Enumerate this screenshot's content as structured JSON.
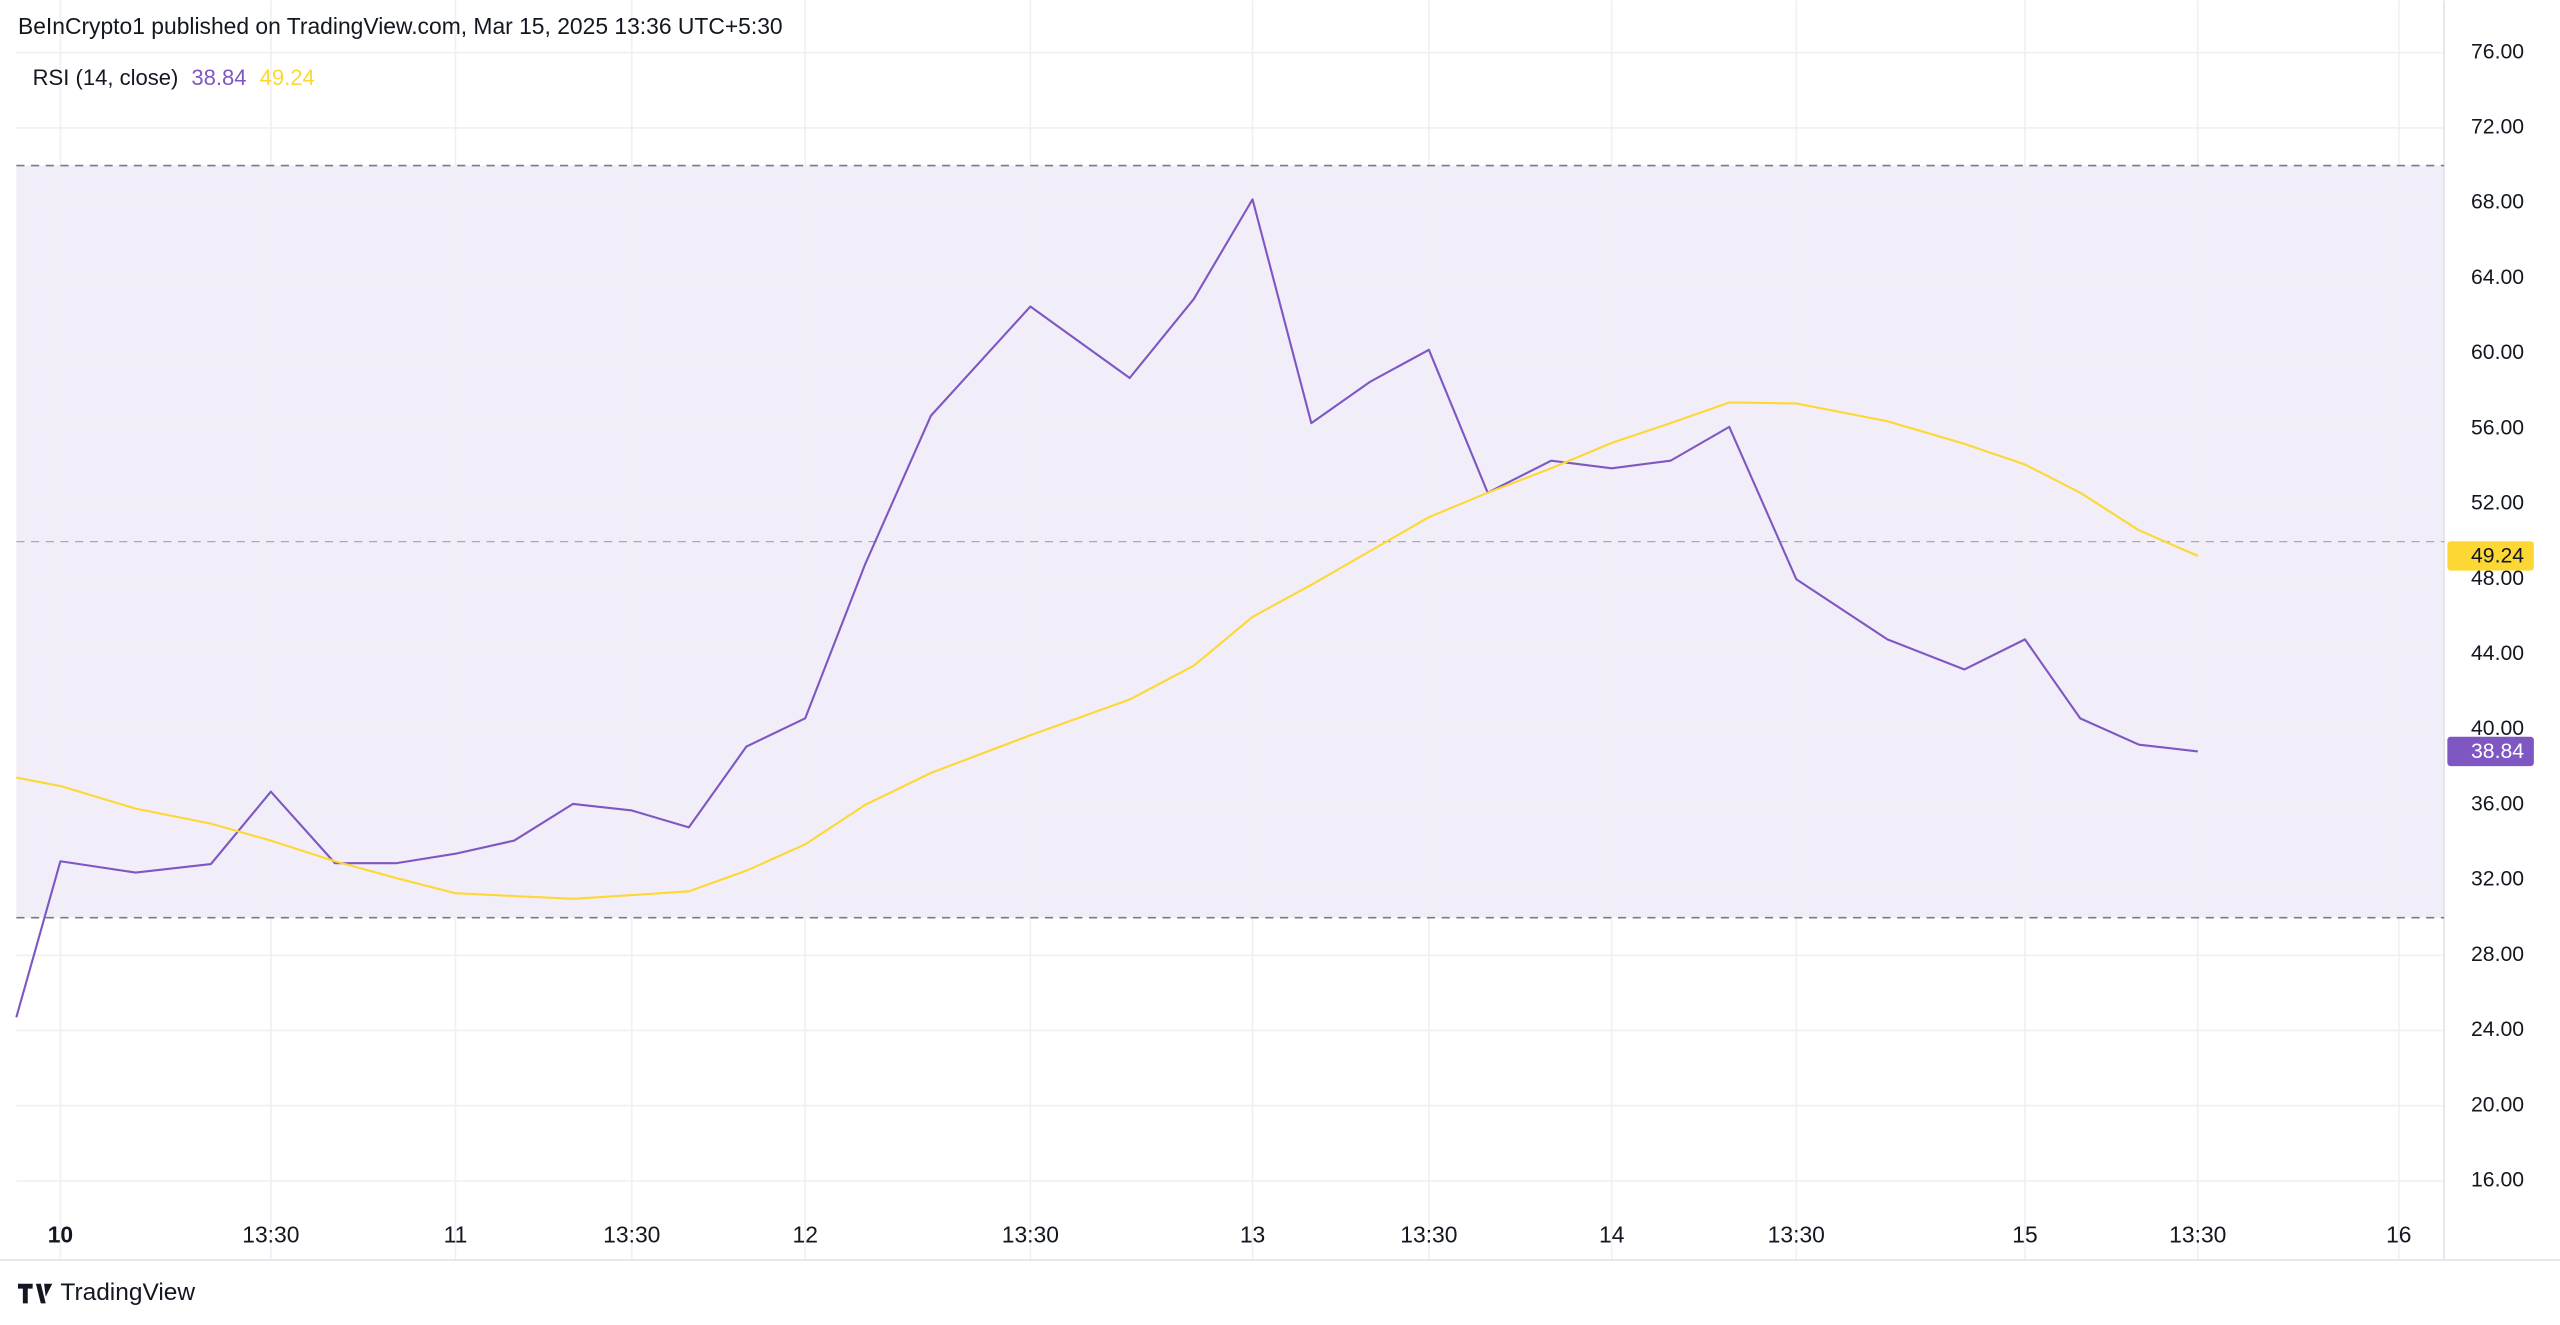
{
  "chart_data": {
    "type": "line",
    "header": "BeInCrypto1 published on TradingView.com, Mar 15, 2025 13:36 UTC+5:30",
    "title": "RSI (14, close)",
    "footer": "TradingView",
    "x": [
      0,
      0.75,
      2.03,
      3.31,
      4.33,
      5.42,
      6.47,
      7.47,
      8.47,
      9.47,
      10.47,
      11.44,
      12.42,
      13.42,
      14.44,
      15.56,
      17.25,
      18.94,
      20.03,
      21.03,
      22.03,
      23.03,
      24.03,
      25.03,
      26.11,
      27.14,
      28.14,
      29.14,
      30.28,
      31.83,
      33.14,
      34.17,
      35.11,
      36.11,
      37.11
    ],
    "series": [
      {
        "color": "#7e57c2",
        "values": [
          24.7,
          33.0,
          32.4,
          32.85,
          36.7,
          32.9,
          32.9,
          33.4,
          34.1,
          36.05,
          35.7,
          34.8,
          39.1,
          40.6,
          48.8,
          56.7,
          62.5,
          58.7,
          62.9,
          68.2,
          56.3,
          58.5,
          60.2,
          52.6,
          54.3,
          53.9,
          54.3,
          56.1,
          48.0,
          44.8,
          43.2,
          44.8,
          40.6,
          39.2,
          38.84
        ]
      },
      {
        "color": "#fdd835",
        "values": [
          37.45,
          37.0,
          35.8,
          35.0,
          34.1,
          33.0,
          32.1,
          31.3,
          31.15,
          31.0,
          31.2,
          31.4,
          32.5,
          33.9,
          36.0,
          37.7,
          39.7,
          41.6,
          43.4,
          46.0,
          47.7,
          49.5,
          51.3,
          52.6,
          53.9,
          55.25,
          56.3,
          57.4,
          57.35,
          56.4,
          55.2,
          54.1,
          52.6,
          50.6,
          49.24
        ]
      }
    ],
    "xlim": [
      0,
      41.3
    ],
    "xticks": [
      {
        "value": 0.75,
        "label": "10"
      },
      {
        "value": 4.33,
        "label": "13:30"
      },
      {
        "value": 7.47,
        "label": "11"
      },
      {
        "value": 10.47,
        "label": "13:30"
      },
      {
        "value": 13.42,
        "label": "12"
      },
      {
        "value": 17.25,
        "label": "13:30"
      },
      {
        "value": 21.03,
        "label": "13"
      },
      {
        "value": 24.03,
        "label": "13:30"
      },
      {
        "value": 27.14,
        "label": "14"
      },
      {
        "value": 30.28,
        "label": "13:30"
      },
      {
        "value": 34.17,
        "label": "15"
      },
      {
        "value": 37.11,
        "label": "13:30"
      },
      {
        "value": 40.53,
        "label": "16"
      }
    ],
    "ylim": [
      11.8,
      76.2
    ],
    "yticks": [
      {
        "value": 16,
        "label": "16.00"
      },
      {
        "value": 20,
        "label": "20.00"
      },
      {
        "value": 24,
        "label": "24.00"
      },
      {
        "value": 28,
        "label": "28.00"
      },
      {
        "value": 32,
        "label": "32.00"
      },
      {
        "value": 36,
        "label": "36.00"
      },
      {
        "value": 40,
        "label": "40.00"
      },
      {
        "value": 44,
        "label": "44.00"
      },
      {
        "value": 48,
        "label": "48.00"
      },
      {
        "value": 52,
        "label": "52.00"
      },
      {
        "value": 56,
        "label": "56.00"
      },
      {
        "value": 60,
        "label": "60.00"
      },
      {
        "value": 64,
        "label": "64.00"
      },
      {
        "value": 68,
        "label": "68.00"
      },
      {
        "value": 72,
        "label": "72.00"
      },
      {
        "value": 76,
        "label": "76.00"
      }
    ],
    "hlines": [
      70,
      50,
      30
    ],
    "band": [
      30,
      70
    ],
    "band_color": "#7e57c2",
    "grid": true
  }
}
